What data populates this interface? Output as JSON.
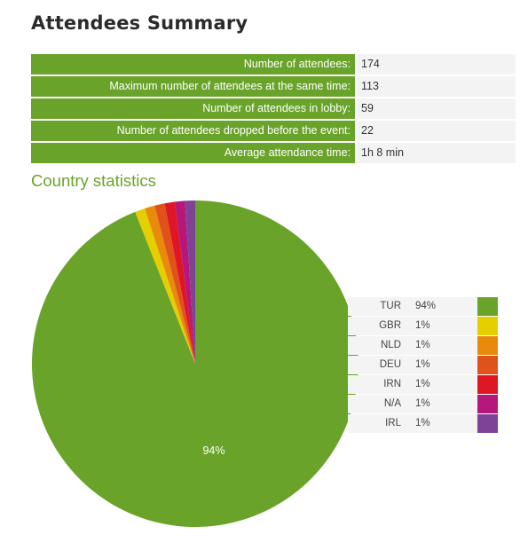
{
  "page": {
    "title": "Attendees Summary"
  },
  "summary": {
    "rows": [
      {
        "label": "Number of attendees:",
        "value": "174"
      },
      {
        "label": "Maximum number of attendees at the same time:",
        "value": "113"
      },
      {
        "label": "Number of attendees in lobby:",
        "value": "59"
      },
      {
        "label": "Number of attendees dropped before the event:",
        "value": "22"
      },
      {
        "label": "Average attendance time:",
        "value": "1h 8 min"
      }
    ]
  },
  "country": {
    "title": "Country statistics"
  },
  "chart_data": {
    "type": "pie",
    "title": "",
    "categories": [
      "TUR",
      "GBR",
      "NLD",
      "DEU",
      "IRN",
      "N/A",
      "IRL"
    ],
    "values": [
      94,
      1,
      1,
      1,
      1,
      1,
      1
    ],
    "value_labels": [
      "94%",
      "1%",
      "1%",
      "1%",
      "1%",
      "1%",
      "1%"
    ],
    "colors": [
      "#6aa329",
      "#e6cf00",
      "#e88a0c",
      "#e0521b",
      "#de1625",
      "#b5177a",
      "#7f4396"
    ],
    "slice_label": "94%",
    "legend_position": "right"
  }
}
